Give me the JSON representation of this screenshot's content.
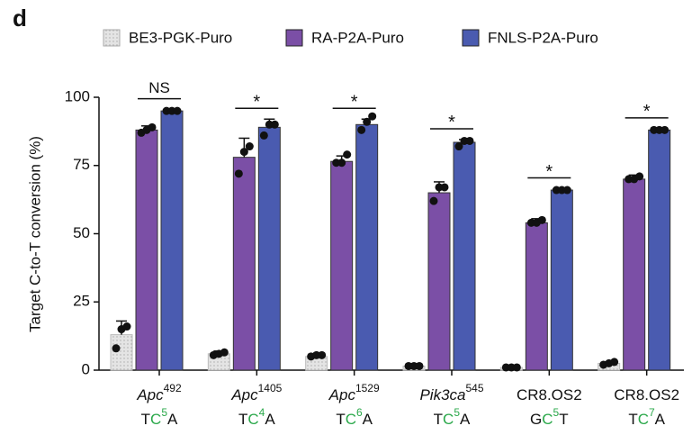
{
  "chart_data": {
    "type": "bar",
    "panel_label": "d",
    "y_label": "Target C-to-T conversion (%)",
    "categories": [
      "Apc",
      "Apc",
      "Apc",
      "Pik3ca",
      "CR8.OS2",
      "CR8.OS2"
    ],
    "category_italic": [
      true,
      true,
      true,
      true,
      false,
      false
    ],
    "category_superscripts": [
      "492",
      "1405",
      "1529",
      "545",
      null,
      null
    ],
    "motifs": [
      {
        "before": "T",
        "base": "C",
        "pos": "5",
        "after": "A"
      },
      {
        "before": "T",
        "base": "C",
        "pos": "4",
        "after": "A"
      },
      {
        "before": "T",
        "base": "C",
        "pos": "6",
        "after": "A"
      },
      {
        "before": "T",
        "base": "C",
        "pos": "5",
        "after": "A"
      },
      {
        "before": "G",
        "base": "C",
        "pos": "5",
        "after": "T"
      },
      {
        "before": "T",
        "base": "C",
        "pos": "7",
        "after": "A"
      }
    ],
    "motif_color": "#2aa84a",
    "series": [
      {
        "name": "BE3-PGK-Puro",
        "color": "#e4e4e4",
        "values": [
          13,
          6,
          5,
          1.5,
          1,
          2.5
        ],
        "errors": [
          5,
          1,
          1,
          0.5,
          0.5,
          0.5
        ],
        "points": [
          [
            8,
            15,
            16
          ],
          [
            5.5,
            6,
            6.5
          ],
          [
            5,
            5.5,
            5.5
          ],
          [
            1.5,
            1.5,
            1.5
          ],
          [
            1,
            1,
            1
          ],
          [
            2,
            2.5,
            3
          ]
        ]
      },
      {
        "name": "RA-P2A-Puro",
        "color": "#7b4fa6",
        "values": [
          88,
          78,
          76.5,
          65,
          54,
          70
        ],
        "errors": [
          1.5,
          7,
          2,
          4,
          1.5,
          1.5
        ],
        "points": [
          [
            87,
            88,
            89
          ],
          [
            72,
            80,
            82
          ],
          [
            76,
            76,
            79
          ],
          [
            62,
            67,
            67
          ],
          [
            54,
            54,
            55
          ],
          [
            70,
            70,
            71
          ]
        ]
      },
      {
        "name": "FNLS-P2A-Puro",
        "color": "#4a5bb0",
        "values": [
          95,
          89,
          90,
          83.5,
          66,
          88
        ],
        "errors": [
          0.5,
          3,
          2,
          1,
          0.5,
          0.5
        ],
        "points": [
          [
            95,
            95,
            95
          ],
          [
            86,
            90,
            90
          ],
          [
            88,
            91,
            93
          ],
          [
            82,
            84,
            84
          ],
          [
            66,
            66,
            66
          ],
          [
            88,
            88,
            88
          ]
        ]
      }
    ],
    "significance": [
      "NS",
      "*",
      "*",
      "*",
      "*",
      "*"
    ],
    "ylim": [
      0,
      100
    ],
    "yticks": [
      0,
      25,
      50,
      75,
      100
    ]
  }
}
